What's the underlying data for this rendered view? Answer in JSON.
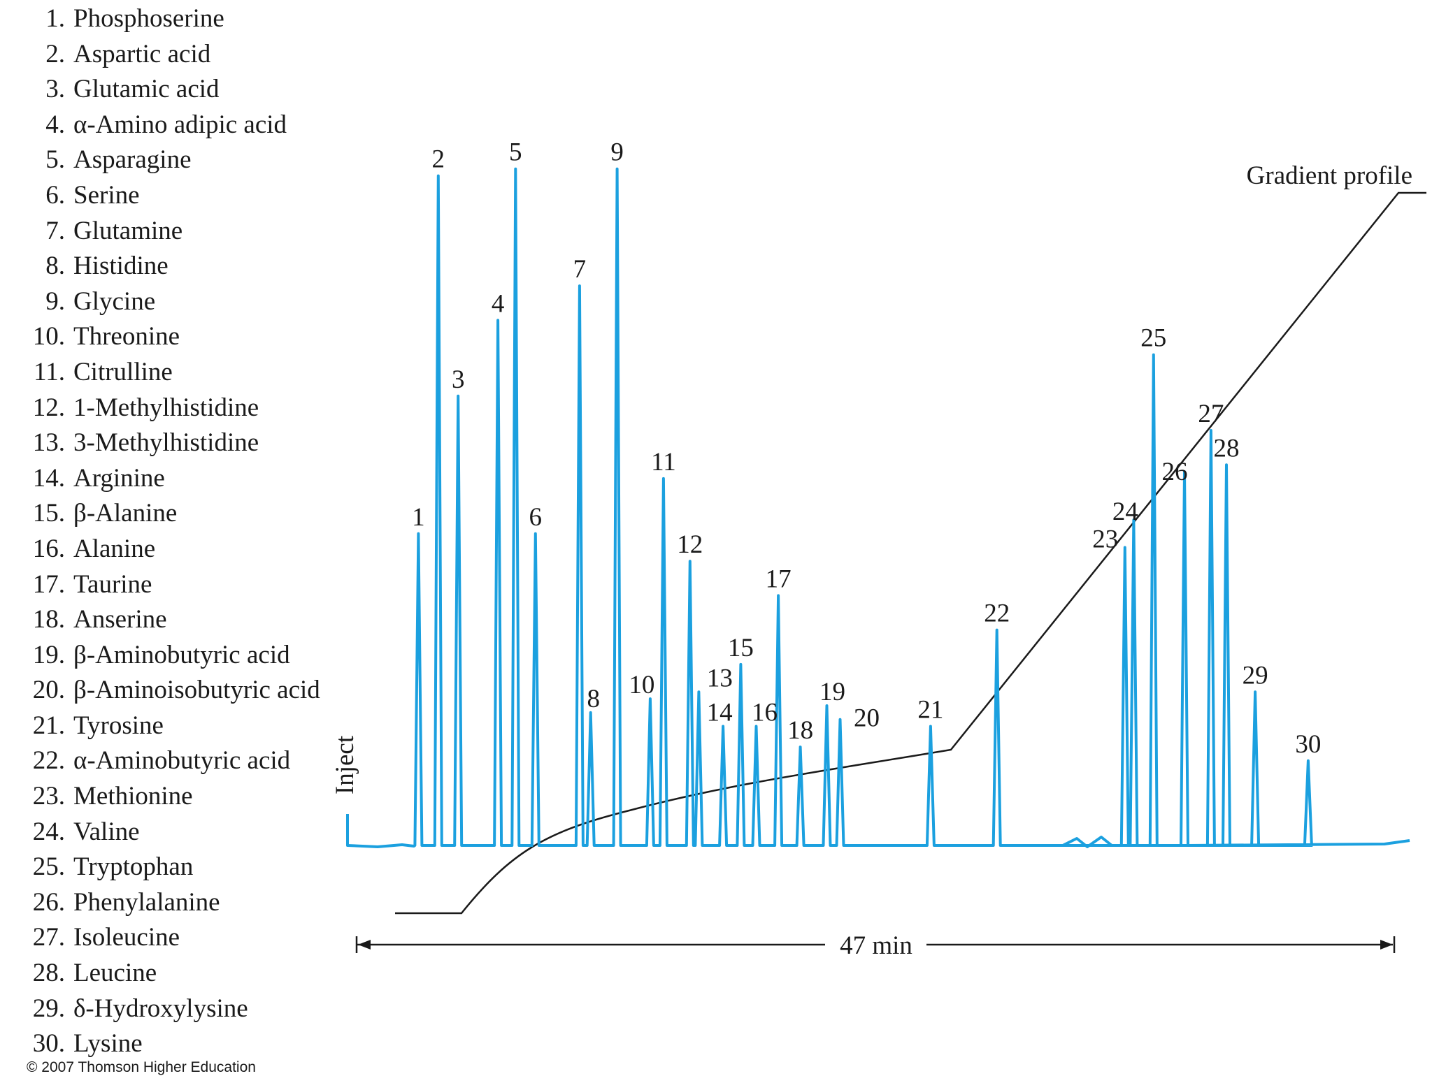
{
  "chart_data": {
    "type": "line",
    "title": "",
    "xlabel": "",
    "ylabel": "",
    "grid": false,
    "legend": "left",
    "inject_label": "Inject",
    "time_label": "47 min",
    "gradient_label": "Gradient profile",
    "colors": {
      "chromatogram": "#1ba0df",
      "gradient": "#1a1a1a",
      "text": "#1a1a1a"
    },
    "peaks": [
      {
        "id": "1",
        "name": "Phosphoserine",
        "t": 2.8,
        "h": 0.45
      },
      {
        "id": "2",
        "name": "Aspartic acid",
        "t": 3.7,
        "h": 0.97
      },
      {
        "id": "3",
        "name": "Glutamic acid",
        "t": 4.6,
        "h": 0.65
      },
      {
        "id": "4",
        "name": "α-Amino adipic acid",
        "t": 6.4,
        "h": 0.76
      },
      {
        "id": "5",
        "name": "Asparagine",
        "t": 7.2,
        "h": 0.98
      },
      {
        "id": "6",
        "name": "Serine",
        "t": 8.1,
        "h": 0.45
      },
      {
        "id": "7",
        "name": "Glutamine",
        "t": 10.1,
        "h": 0.81
      },
      {
        "id": "8",
        "name": "Histidine",
        "t": 10.6,
        "h": 0.19
      },
      {
        "id": "9",
        "name": "Glycine",
        "t": 11.8,
        "h": 0.98
      },
      {
        "id": "10",
        "name": "Threonine",
        "t": 13.3,
        "h": 0.21
      },
      {
        "id": "11",
        "name": "Citrulline",
        "t": 13.9,
        "h": 0.53
      },
      {
        "id": "12",
        "name": "1-Methylhistidine",
        "t": 15.1,
        "h": 0.41
      },
      {
        "id": "13",
        "name": "3-Methylhistidine",
        "t": 15.5,
        "h": 0.22
      },
      {
        "id": "14",
        "name": "Arginine",
        "t": 16.6,
        "h": 0.17
      },
      {
        "id": "15",
        "name": "β-Alanine",
        "t": 17.4,
        "h": 0.26
      },
      {
        "id": "16",
        "name": "Alanine",
        "t": 18.1,
        "h": 0.17
      },
      {
        "id": "17",
        "name": "Taurine",
        "t": 19.1,
        "h": 0.36
      },
      {
        "id": "18",
        "name": "Anserine",
        "t": 20.1,
        "h": 0.14
      },
      {
        "id": "19",
        "name": "β-Aminobutyric acid",
        "t": 21.3,
        "h": 0.2
      },
      {
        "id": "20",
        "name": "β-Aminoisobutyric acid",
        "t": 21.9,
        "h": 0.18
      },
      {
        "id": "21",
        "name": "Tyrosine",
        "t": 26.0,
        "h": 0.17
      },
      {
        "id": "22",
        "name": "α-Aminobutyric acid",
        "t": 29.0,
        "h": 0.31
      },
      {
        "id": "23",
        "name": "Methionine",
        "t": 34.8,
        "h": 0.43
      },
      {
        "id": "24",
        "name": "Valine",
        "t": 35.2,
        "h": 0.47
      },
      {
        "id": "25",
        "name": "Tryptophan",
        "t": 36.1,
        "h": 0.71
      },
      {
        "id": "26",
        "name": "Phenylalanine",
        "t": 37.5,
        "h": 0.54
      },
      {
        "id": "27",
        "name": "Isoleucine",
        "t": 38.7,
        "h": 0.6
      },
      {
        "id": "28",
        "name": "Leucine",
        "t": 39.4,
        "h": 0.55
      },
      {
        "id": "29",
        "name": "δ-Hydroxylysine",
        "t": 40.7,
        "h": 0.22
      },
      {
        "id": "30",
        "name": "Lysine",
        "t": 43.1,
        "h": 0.12
      }
    ]
  },
  "copyright": "© 2007 Thomson Higher Education"
}
